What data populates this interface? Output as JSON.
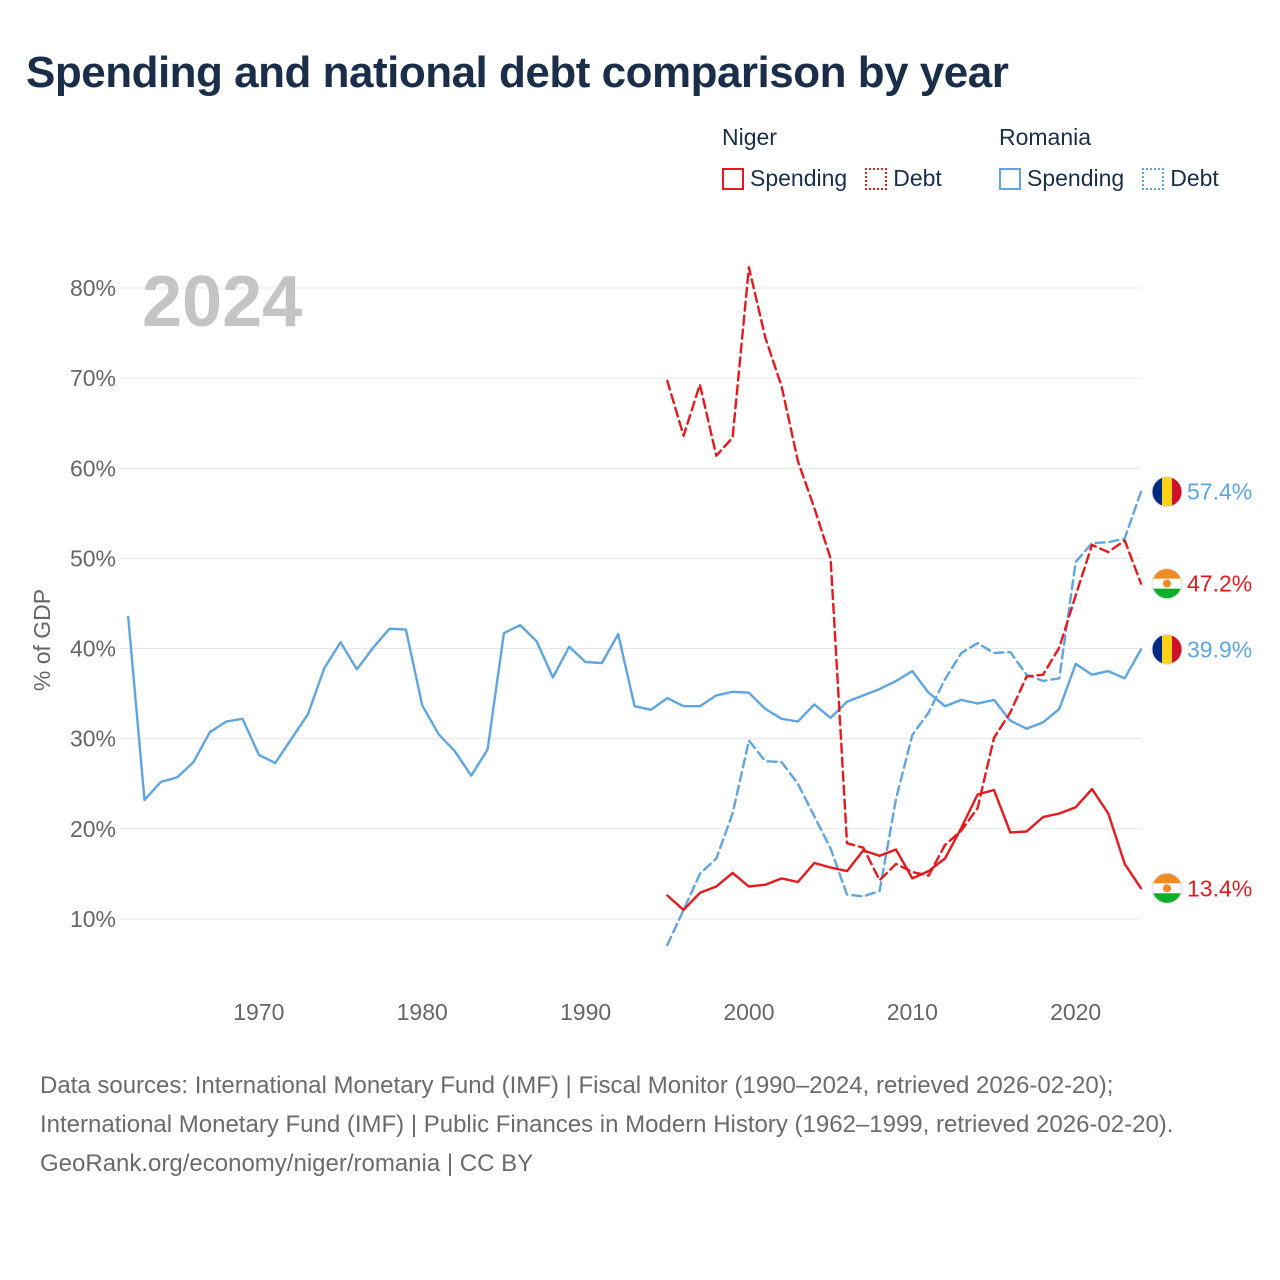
{
  "title": "Spending and national debt comparison by year",
  "legend": {
    "groups": [
      {
        "country": "Niger",
        "color": "#e8191c",
        "items": [
          {
            "label": "Spending",
            "style": "solid"
          },
          {
            "label": "Debt",
            "style": "dotted"
          }
        ]
      },
      {
        "country": "Romania",
        "color": "#5ea5e3",
        "items": [
          {
            "label": "Spending",
            "style": "solid"
          },
          {
            "label": "Debt",
            "style": "dotted"
          }
        ]
      }
    ]
  },
  "chart_data": {
    "type": "line",
    "title": "Spending and national debt comparison by year",
    "year_label": "2024",
    "ylabel": "% of GDP",
    "xlabel": "",
    "xlim": [
      1961.5,
      2024
    ],
    "ylim": [
      3,
      82
    ],
    "x_ticks": [
      1970,
      1980,
      1990,
      2000,
      2010,
      2020
    ],
    "y_ticks": [
      10,
      20,
      30,
      40,
      50,
      60,
      70,
      80
    ],
    "y_tick_labels": [
      "10%",
      "20%",
      "30%",
      "40%",
      "50%",
      "60%",
      "70%",
      "80%"
    ],
    "grid": true,
    "series": [
      {
        "name": "Romania Spending",
        "country": "Romania",
        "kind": "Spending",
        "color": "#5ea5e3",
        "dash": "solid",
        "x": [
          1962,
          1963,
          1964,
          1965,
          1966,
          1967,
          1968,
          1969,
          1970,
          1971,
          1972,
          1973,
          1974,
          1975,
          1976,
          1977,
          1978,
          1979,
          1980,
          1981,
          1982,
          1983,
          1984,
          1985,
          1986,
          1987,
          1988,
          1989,
          1990,
          1991,
          1992,
          1993,
          1994,
          1995,
          1996,
          1997,
          1998,
          1999,
          2000,
          2001,
          2002,
          2003,
          2004,
          2005,
          2006,
          2007,
          2008,
          2009,
          2010,
          2011,
          2012,
          2013,
          2014,
          2015,
          2016,
          2017,
          2018,
          2019,
          2020,
          2021,
          2022,
          2023,
          2024
        ],
        "values": [
          43.5,
          23.2,
          25.2,
          25.7,
          27.4,
          30.7,
          31.9,
          32.2,
          28.2,
          27.3,
          30.0,
          32.7,
          37.8,
          40.7,
          37.7,
          40.1,
          42.2,
          42.1,
          33.7,
          30.5,
          28.6,
          25.9,
          28.8,
          41.7,
          42.6,
          40.8,
          36.8,
          40.2,
          38.5,
          38.4,
          41.6,
          33.6,
          33.2,
          34.5,
          33.6,
          33.6,
          34.8,
          35.2,
          35.1,
          33.3,
          32.2,
          31.9,
          33.8,
          32.3,
          34.1,
          34.8,
          35.5,
          36.4,
          37.5,
          35.1,
          33.6,
          34.3,
          33.9,
          34.3,
          32.0,
          31.1,
          31.8,
          33.3,
          38.3,
          37.1,
          37.5,
          36.7,
          39.9
        ],
        "end_label": "39.9%"
      },
      {
        "name": "Romania Debt",
        "country": "Romania",
        "kind": "Debt",
        "color": "#5ea5e3",
        "dash": "dashed",
        "x": [
          1995,
          1996,
          1997,
          1998,
          1999,
          2000,
          2001,
          2002,
          2003,
          2004,
          2005,
          2006,
          2007,
          2008,
          2009,
          2010,
          2011,
          2012,
          2013,
          2014,
          2015,
          2016,
          2017,
          2018,
          2019,
          2020,
          2021,
          2022,
          2023,
          2024
        ],
        "values": [
          7.1,
          11.0,
          15.0,
          16.7,
          21.7,
          29.8,
          27.5,
          27.4,
          25.0,
          21.4,
          17.8,
          12.7,
          12.5,
          13.1,
          23.3,
          30.4,
          32.9,
          36.6,
          39.5,
          40.6,
          39.5,
          39.6,
          37.1,
          36.4,
          36.7,
          49.6,
          51.7,
          51.8,
          52.2,
          57.4
        ],
        "end_label": "57.4%"
      },
      {
        "name": "Niger Spending",
        "country": "Niger",
        "kind": "Spending",
        "color": "#e8191c",
        "dash": "solid",
        "x": [
          1995,
          1996,
          1997,
          1998,
          1999,
          2000,
          2001,
          2002,
          2003,
          2004,
          2005,
          2006,
          2007,
          2008,
          2009,
          2010,
          2011,
          2012,
          2013,
          2014,
          2015,
          2016,
          2017,
          2018,
          2019,
          2020,
          2021,
          2022,
          2023,
          2024
        ],
        "values": [
          12.6,
          11.0,
          12.9,
          13.6,
          15.1,
          13.6,
          13.8,
          14.5,
          14.1,
          16.2,
          15.7,
          15.3,
          17.6,
          17.0,
          17.7,
          14.5,
          15.3,
          16.7,
          20.1,
          23.8,
          24.3,
          19.6,
          19.7,
          21.3,
          21.7,
          22.4,
          24.4,
          21.7,
          16.1,
          13.4
        ],
        "end_label": "13.4%"
      },
      {
        "name": "Niger Debt",
        "country": "Niger",
        "kind": "Debt",
        "color": "#e8191c",
        "dash": "dashed",
        "x": [
          1995,
          1996,
          1997,
          1998,
          1999,
          2000,
          2001,
          2002,
          2003,
          2004,
          2005,
          2006,
          2007,
          2008,
          2009,
          2010,
          2011,
          2012,
          2013,
          2014,
          2015,
          2016,
          2017,
          2018,
          2019,
          2020,
          2021,
          2022,
          2023,
          2024
        ],
        "values": [
          69.7,
          63.6,
          69.3,
          61.4,
          63.4,
          82.3,
          74.5,
          69.1,
          60.8,
          55.6,
          50.0,
          18.4,
          17.9,
          14.3,
          16.1,
          15.2,
          14.8,
          18.2,
          19.8,
          22.3,
          30.1,
          32.9,
          36.9,
          37.1,
          40.1,
          45.9,
          51.5,
          50.7,
          52.0,
          47.2
        ],
        "end_label": "47.2%"
      }
    ],
    "flags": {
      "romania": [
        "#002b7f",
        "#fcd116",
        "#ce1126"
      ],
      "niger": [
        "#f08a24",
        "#ffffff",
        "#0db02b"
      ]
    }
  },
  "footer": {
    "sources": "Data sources: International Monetary Fund (IMF) | Fiscal Monitor (1990–2024, retrieved 2026-02-20); International Monetary Fund (IMF) | Public Finances in Modern History (1962–1999, retrieved 2026-02-20).",
    "credit": "GeoRank.org/economy/niger/romania | CC BY"
  }
}
